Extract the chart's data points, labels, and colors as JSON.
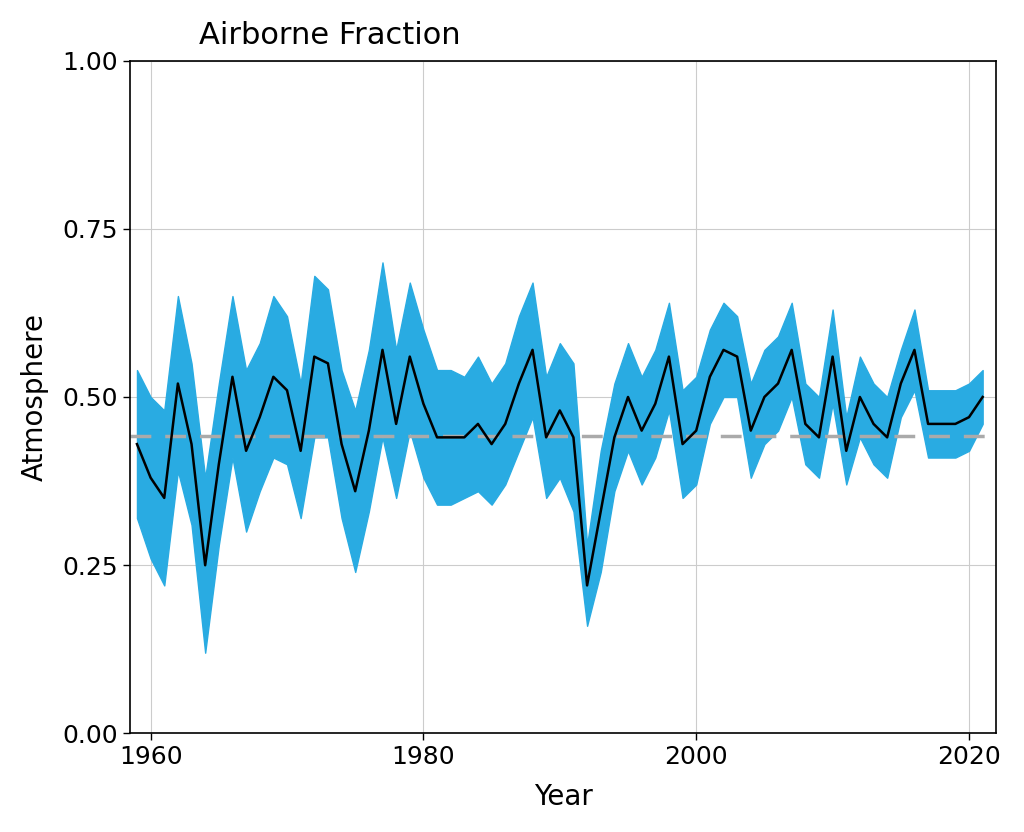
{
  "title": "Airborne Fraction",
  "xlabel": "Year",
  "ylabel": "Atmosphere",
  "years": [
    1959,
    1960,
    1961,
    1962,
    1963,
    1964,
    1965,
    1966,
    1967,
    1968,
    1969,
    1970,
    1971,
    1972,
    1973,
    1974,
    1975,
    1976,
    1977,
    1978,
    1979,
    1980,
    1981,
    1982,
    1983,
    1984,
    1985,
    1986,
    1987,
    1988,
    1989,
    1990,
    1991,
    1992,
    1993,
    1994,
    1995,
    1996,
    1997,
    1998,
    1999,
    2000,
    2001,
    2002,
    2003,
    2004,
    2005,
    2006,
    2007,
    2008,
    2009,
    2010,
    2011,
    2012,
    2013,
    2014,
    2015,
    2016,
    2017,
    2018,
    2019,
    2020,
    2021
  ],
  "af": [
    0.43,
    0.38,
    0.35,
    0.52,
    0.43,
    0.25,
    0.4,
    0.53,
    0.42,
    0.47,
    0.53,
    0.51,
    0.42,
    0.56,
    0.55,
    0.43,
    0.36,
    0.45,
    0.57,
    0.46,
    0.56,
    0.49,
    0.44,
    0.44,
    0.44,
    0.46,
    0.43,
    0.46,
    0.52,
    0.57,
    0.44,
    0.48,
    0.44,
    0.22,
    0.33,
    0.44,
    0.5,
    0.45,
    0.49,
    0.56,
    0.43,
    0.45,
    0.53,
    0.57,
    0.56,
    0.45,
    0.5,
    0.52,
    0.57,
    0.46,
    0.44,
    0.56,
    0.42,
    0.5,
    0.46,
    0.44,
    0.52,
    0.57,
    0.46,
    0.46,
    0.46,
    0.47,
    0.5
  ],
  "af_upper": [
    0.54,
    0.5,
    0.48,
    0.65,
    0.55,
    0.38,
    0.52,
    0.65,
    0.54,
    0.58,
    0.65,
    0.62,
    0.52,
    0.68,
    0.66,
    0.54,
    0.48,
    0.57,
    0.7,
    0.57,
    0.67,
    0.6,
    0.54,
    0.54,
    0.53,
    0.56,
    0.52,
    0.55,
    0.62,
    0.67,
    0.53,
    0.58,
    0.55,
    0.28,
    0.42,
    0.52,
    0.58,
    0.53,
    0.57,
    0.64,
    0.51,
    0.53,
    0.6,
    0.64,
    0.62,
    0.52,
    0.57,
    0.59,
    0.64,
    0.52,
    0.5,
    0.63,
    0.47,
    0.56,
    0.52,
    0.5,
    0.57,
    0.63,
    0.51,
    0.51,
    0.51,
    0.52,
    0.54
  ],
  "af_lower": [
    0.32,
    0.26,
    0.22,
    0.39,
    0.31,
    0.12,
    0.28,
    0.41,
    0.3,
    0.36,
    0.41,
    0.4,
    0.32,
    0.44,
    0.44,
    0.32,
    0.24,
    0.33,
    0.44,
    0.35,
    0.45,
    0.38,
    0.34,
    0.34,
    0.35,
    0.36,
    0.34,
    0.37,
    0.42,
    0.47,
    0.35,
    0.38,
    0.33,
    0.16,
    0.24,
    0.36,
    0.42,
    0.37,
    0.41,
    0.48,
    0.35,
    0.37,
    0.46,
    0.5,
    0.5,
    0.38,
    0.43,
    0.45,
    0.5,
    0.4,
    0.38,
    0.49,
    0.37,
    0.44,
    0.4,
    0.38,
    0.47,
    0.51,
    0.41,
    0.41,
    0.41,
    0.42,
    0.46
  ],
  "mean_line": 0.442,
  "ylim": [
    0.0,
    1.0
  ],
  "xlim": [
    1958.5,
    2022
  ],
  "xticks": [
    1960,
    1980,
    2000,
    2020
  ],
  "yticks": [
    0.0,
    0.25,
    0.5,
    0.75,
    1.0
  ],
  "line_color": "#000000",
  "band_color": "#29ABE2",
  "mean_color": "#aaaaaa",
  "bg_color": "#ffffff",
  "grid_color": "#cccccc",
  "spine_color": "#000000",
  "title_fontsize": 22,
  "label_fontsize": 20,
  "tick_fontsize": 18
}
